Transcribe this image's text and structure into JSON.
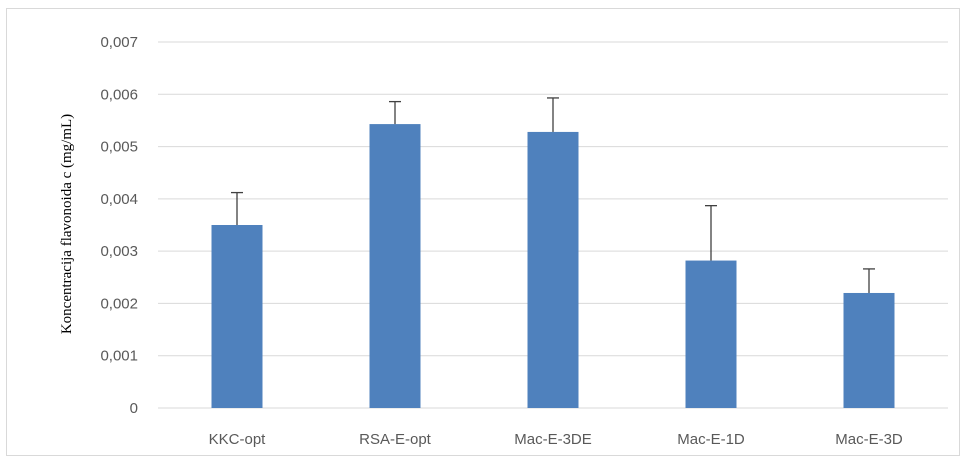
{
  "chart_data": {
    "type": "bar",
    "categories": [
      "KKC-opt",
      "RSA-E-opt",
      "Mac-E-3DE",
      "Mac-E-1D",
      "Mac-E-3D"
    ],
    "values": [
      0.0035,
      0.00543,
      0.00528,
      0.00282,
      0.0022
    ],
    "errors": [
      0.00062,
      0.00043,
      0.00065,
      0.00105,
      0.00046
    ],
    "ylabel": "Koncentracija flavonoida c (mg/mL)",
    "ylim": [
      0,
      0.007
    ],
    "yticks": [
      "0",
      "0,001",
      "0,002",
      "0,003",
      "0,004",
      "0,005",
      "0,006",
      "0,007"
    ],
    "grid": true,
    "bar_color": "#4f81bd",
    "error_bar_color": "#404040",
    "grid_color": "#d9d9d9"
  }
}
